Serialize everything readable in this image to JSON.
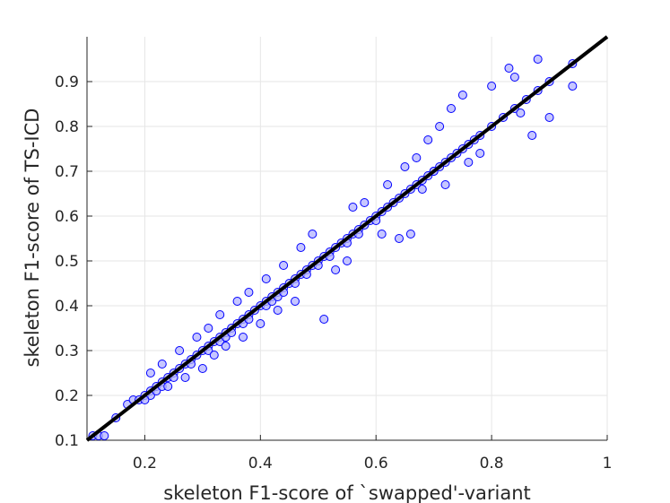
{
  "chart_data": {
    "type": "scatter",
    "title": "",
    "xlabel": "skeleton F1-score of `swapped'-variant",
    "ylabel": "skeleton F1-score of TS-ICD",
    "xlim": [
      0.1,
      1.0
    ],
    "ylim": [
      0.1,
      1.0
    ],
    "xticks": [
      0.2,
      0.4,
      0.6,
      0.8,
      1.0
    ],
    "xtick_labels": [
      "0.2",
      "0.4",
      "0.6",
      "0.8",
      "1"
    ],
    "yticks": [
      0.1,
      0.2,
      0.3,
      0.4,
      0.5,
      0.6,
      0.7,
      0.8,
      0.9
    ],
    "ytick_labels": [
      "0.1",
      "0.2",
      "0.3",
      "0.4",
      "0.5",
      "0.6",
      "0.7",
      "0.8",
      "0.9"
    ],
    "grid": true,
    "legend": "none",
    "colors": {
      "marker_edge": "#0000ff",
      "marker_fill": "#b3b3ff",
      "reference_line": "#000000",
      "grid": "#e6e6e6",
      "axis": "#262626"
    },
    "reference_line": {
      "x": [
        0.1,
        1.0
      ],
      "y": [
        0.1,
        1.0
      ]
    },
    "series": [
      {
        "x": [
          0.11,
          0.12,
          0.13,
          0.15,
          0.17,
          0.18,
          0.19,
          0.2,
          0.21,
          0.21,
          0.22,
          0.22,
          0.23,
          0.23,
          0.24,
          0.25,
          0.25,
          0.26,
          0.27,
          0.28,
          0.28,
          0.29,
          0.3,
          0.31,
          0.31,
          0.32,
          0.33,
          0.33,
          0.34,
          0.34,
          0.35,
          0.35,
          0.36,
          0.37,
          0.37,
          0.38,
          0.38,
          0.39,
          0.4,
          0.41,
          0.41,
          0.42,
          0.42,
          0.43,
          0.43,
          0.44,
          0.44,
          0.45,
          0.46,
          0.46,
          0.47,
          0.48,
          0.48,
          0.49,
          0.5,
          0.5,
          0.51,
          0.52,
          0.52,
          0.53,
          0.54,
          0.55,
          0.55,
          0.56,
          0.57,
          0.57,
          0.58,
          0.59,
          0.6,
          0.6,
          0.61,
          0.62,
          0.63,
          0.64,
          0.65,
          0.66,
          0.67,
          0.68,
          0.69,
          0.7,
          0.71,
          0.72,
          0.73,
          0.74,
          0.75,
          0.76,
          0.77,
          0.78,
          0.8,
          0.82,
          0.84,
          0.86,
          0.88,
          0.9,
          0.94,
          0.21,
          0.23,
          0.26,
          0.29,
          0.31,
          0.33,
          0.36,
          0.38,
          0.41,
          0.44,
          0.47,
          0.49,
          0.56,
          0.58,
          0.62,
          0.65,
          0.67,
          0.69,
          0.71,
          0.73,
          0.75,
          0.8,
          0.83,
          0.84,
          0.2,
          0.24,
          0.27,
          0.3,
          0.32,
          0.34,
          0.37,
          0.4,
          0.43,
          0.46,
          0.51,
          0.53,
          0.55,
          0.61,
          0.64,
          0.66,
          0.68,
          0.7,
          0.72,
          0.76,
          0.78,
          0.85,
          0.87,
          0.9,
          0.94,
          0.88
        ],
        "y": [
          0.11,
          0.11,
          0.11,
          0.15,
          0.18,
          0.19,
          0.19,
          0.2,
          0.21,
          0.2,
          0.22,
          0.21,
          0.23,
          0.22,
          0.24,
          0.25,
          0.24,
          0.26,
          0.27,
          0.28,
          0.27,
          0.29,
          0.3,
          0.31,
          0.3,
          0.32,
          0.33,
          0.32,
          0.34,
          0.33,
          0.35,
          0.34,
          0.36,
          0.37,
          0.36,
          0.38,
          0.37,
          0.39,
          0.4,
          0.41,
          0.4,
          0.42,
          0.41,
          0.43,
          0.42,
          0.44,
          0.43,
          0.45,
          0.46,
          0.45,
          0.47,
          0.48,
          0.47,
          0.49,
          0.5,
          0.49,
          0.51,
          0.52,
          0.51,
          0.53,
          0.54,
          0.55,
          0.54,
          0.56,
          0.57,
          0.56,
          0.58,
          0.59,
          0.6,
          0.59,
          0.61,
          0.62,
          0.63,
          0.64,
          0.65,
          0.66,
          0.67,
          0.68,
          0.69,
          0.7,
          0.71,
          0.72,
          0.73,
          0.74,
          0.75,
          0.76,
          0.77,
          0.78,
          0.8,
          0.82,
          0.84,
          0.86,
          0.88,
          0.9,
          0.94,
          0.25,
          0.27,
          0.3,
          0.33,
          0.35,
          0.38,
          0.41,
          0.43,
          0.46,
          0.49,
          0.53,
          0.56,
          0.62,
          0.63,
          0.67,
          0.71,
          0.73,
          0.77,
          0.8,
          0.84,
          0.87,
          0.89,
          0.93,
          0.91,
          0.19,
          0.22,
          0.24,
          0.26,
          0.29,
          0.31,
          0.33,
          0.36,
          0.39,
          0.41,
          0.37,
          0.48,
          0.5,
          0.56,
          0.55,
          0.56,
          0.66,
          0.7,
          0.67,
          0.72,
          0.74,
          0.83,
          0.78,
          0.82,
          0.89,
          0.95
        ]
      }
    ]
  }
}
